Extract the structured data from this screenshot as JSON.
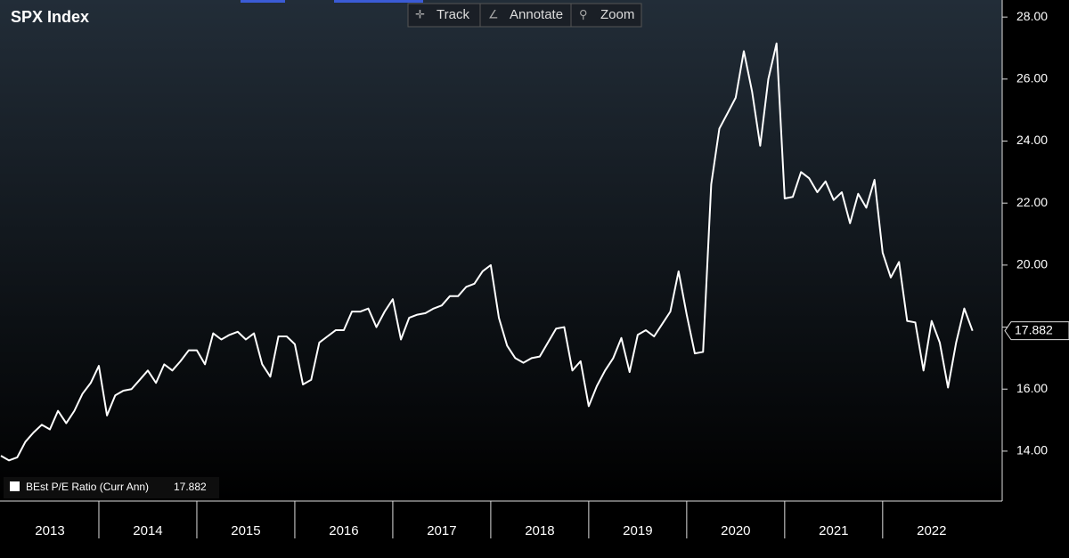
{
  "chart_data": {
    "type": "line",
    "title": "SPX Index",
    "toolbar": [
      "Track",
      "Annotate",
      "Zoom"
    ],
    "x": [
      2013,
      2013.083,
      2013.167,
      2013.25,
      2013.333,
      2013.417,
      2013.5,
      2013.583,
      2013.667,
      2013.75,
      2013.833,
      2013.917,
      2014,
      2014.083,
      2014.167,
      2014.25,
      2014.333,
      2014.417,
      2014.5,
      2014.583,
      2014.667,
      2014.75,
      2014.833,
      2014.917,
      2015,
      2015.083,
      2015.167,
      2015.25,
      2015.333,
      2015.417,
      2015.5,
      2015.583,
      2015.667,
      2015.75,
      2015.833,
      2015.917,
      2016,
      2016.083,
      2016.167,
      2016.25,
      2016.333,
      2016.417,
      2016.5,
      2016.583,
      2016.667,
      2016.75,
      2016.833,
      2016.917,
      2017,
      2017.083,
      2017.167,
      2017.25,
      2017.333,
      2017.417,
      2017.5,
      2017.583,
      2017.667,
      2017.75,
      2017.833,
      2017.917,
      2018,
      2018.083,
      2018.167,
      2018.25,
      2018.333,
      2018.417,
      2018.5,
      2018.583,
      2018.667,
      2018.75,
      2018.833,
      2018.917,
      2019,
      2019.083,
      2019.167,
      2019.25,
      2019.333,
      2019.417,
      2019.5,
      2019.583,
      2019.667,
      2019.75,
      2019.833,
      2019.917,
      2020,
      2020.083,
      2020.167,
      2020.25,
      2020.333,
      2020.417,
      2020.5,
      2020.583,
      2020.667,
      2020.75,
      2020.833,
      2020.917,
      2021,
      2021.083,
      2021.167,
      2021.25,
      2021.333,
      2021.417,
      2021.5,
      2021.583,
      2021.667,
      2021.75,
      2021.833,
      2021.917,
      2022,
      2022.083,
      2022.167,
      2022.25,
      2022.333,
      2022.417,
      2022.5,
      2022.583,
      2022.667,
      2022.75,
      2022.833,
      2022.917
    ],
    "series": [
      {
        "name": "BEst P/E Ratio (Curr Ann)",
        "color": "#ffffff",
        "values": [
          13.85,
          13.7,
          13.8,
          14.3,
          14.6,
          14.85,
          14.7,
          15.3,
          14.9,
          15.3,
          15.85,
          16.2,
          16.75,
          15.15,
          15.8,
          15.95,
          16.0,
          16.3,
          16.6,
          16.2,
          16.8,
          16.6,
          16.9,
          17.25,
          17.25,
          16.8,
          17.8,
          17.6,
          17.75,
          17.85,
          17.6,
          17.8,
          16.8,
          16.4,
          17.7,
          17.7,
          17.45,
          16.15,
          16.3,
          17.5,
          17.7,
          17.9,
          17.9,
          18.5,
          18.5,
          18.6,
          18.0,
          18.5,
          18.9,
          17.6,
          18.3,
          18.4,
          18.45,
          18.6,
          18.7,
          19.0,
          19.0,
          19.3,
          19.4,
          19.8,
          20.0,
          18.3,
          17.4,
          17.0,
          16.85,
          17.0,
          17.05,
          17.5,
          17.95,
          18.0,
          16.6,
          16.9,
          15.45,
          16.1,
          16.6,
          17.0,
          17.65,
          16.55,
          17.75,
          17.9,
          17.7,
          18.1,
          18.5,
          19.8,
          18.4,
          17.15,
          17.2,
          22.6,
          24.4,
          24.9,
          25.4,
          26.9,
          25.6,
          23.85,
          26.0,
          27.15,
          22.15,
          22.2,
          23.0,
          22.8,
          22.35,
          22.7,
          22.1,
          22.35,
          21.35,
          22.3,
          21.85,
          22.75,
          20.4,
          19.6,
          20.1,
          18.2,
          18.15,
          16.6,
          18.2,
          17.5,
          16.05,
          17.5,
          18.6,
          17.882
        ]
      }
    ],
    "categories": [
      "2013",
      "2014",
      "2015",
      "2016",
      "2017",
      "2018",
      "2019",
      "2020",
      "2021",
      "2022"
    ],
    "xlim": [
      2013,
      2023.22
    ],
    "xticks": [
      2014,
      2015,
      2016,
      2017,
      2018,
      2019,
      2020,
      2021,
      2022
    ],
    "ylim": [
      12.39,
      28.55
    ],
    "yticks": [
      {
        "value": 14,
        "label": "14.00"
      },
      {
        "value": 16,
        "label": "16.00"
      },
      {
        "value": 18,
        "label": "18.00"
      },
      {
        "value": 20,
        "label": "20.00"
      },
      {
        "value": 22,
        "label": "22.00"
      },
      {
        "value": 24,
        "label": "24.00"
      },
      {
        "value": 26,
        "label": "26.00"
      },
      {
        "value": 28,
        "label": "28.00"
      }
    ]
  }
}
